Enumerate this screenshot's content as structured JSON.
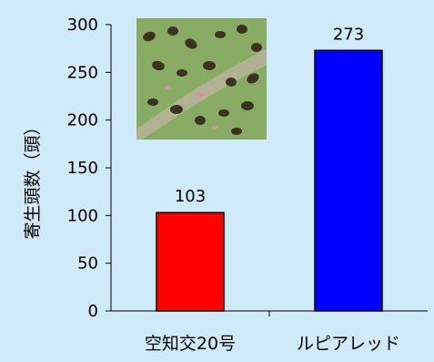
{
  "chart_data": {
    "type": "bar",
    "categories": [
      "空知交20号",
      "ルピアレッド"
    ],
    "values": [
      103,
      273
    ],
    "data_labels": [
      "103",
      "273"
    ],
    "colors": [
      "#ff0000",
      "#0000ff"
    ],
    "ylabel": "寄生頭数（頭）",
    "ylim": [
      0,
      300
    ],
    "yticks": [
      "0",
      "50",
      "100",
      "150",
      "200",
      "250",
      "300"
    ],
    "grid": false,
    "legend": "none",
    "background": "#cfeaf8",
    "inset_image": "aphids-on-leaf-photo"
  }
}
